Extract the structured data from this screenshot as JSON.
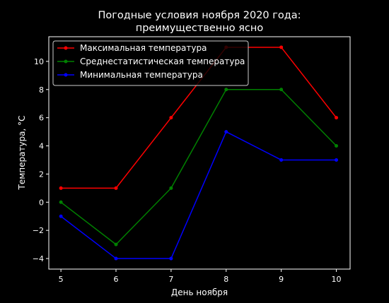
{
  "chart_data": {
    "type": "line",
    "title": "Погодные условия ноября 2020 года:",
    "subtitle": "преимущественно ясно",
    "xlabel": "День ноября",
    "ylabel": "Температура, °C",
    "x": [
      5,
      6,
      7,
      8,
      9,
      10
    ],
    "xlim": [
      4.78,
      10.25
    ],
    "ylim": [
      -4.75,
      11.75
    ],
    "xticks": [
      5,
      6,
      7,
      8,
      9,
      10
    ],
    "yticks": [
      -4,
      -2,
      0,
      2,
      4,
      6,
      8,
      10
    ],
    "ytick_labels": [
      "−4",
      "−2",
      "0",
      "2",
      "4",
      "6",
      "8",
      "10"
    ],
    "grid": false,
    "legend_position": "top-left",
    "background": "#000000",
    "series": [
      {
        "name": "Максимальная температура",
        "color": "#ff0000",
        "values": [
          1,
          1,
          6,
          11,
          11,
          6
        ]
      },
      {
        "name": "Среднестатистическая температура",
        "color": "#008000",
        "values": [
          0,
          -3,
          1,
          8,
          8,
          4
        ]
      },
      {
        "name": "Минимальная температура",
        "color": "#0000ff",
        "values": [
          -1,
          -4,
          -4,
          5,
          3,
          3
        ]
      }
    ]
  }
}
